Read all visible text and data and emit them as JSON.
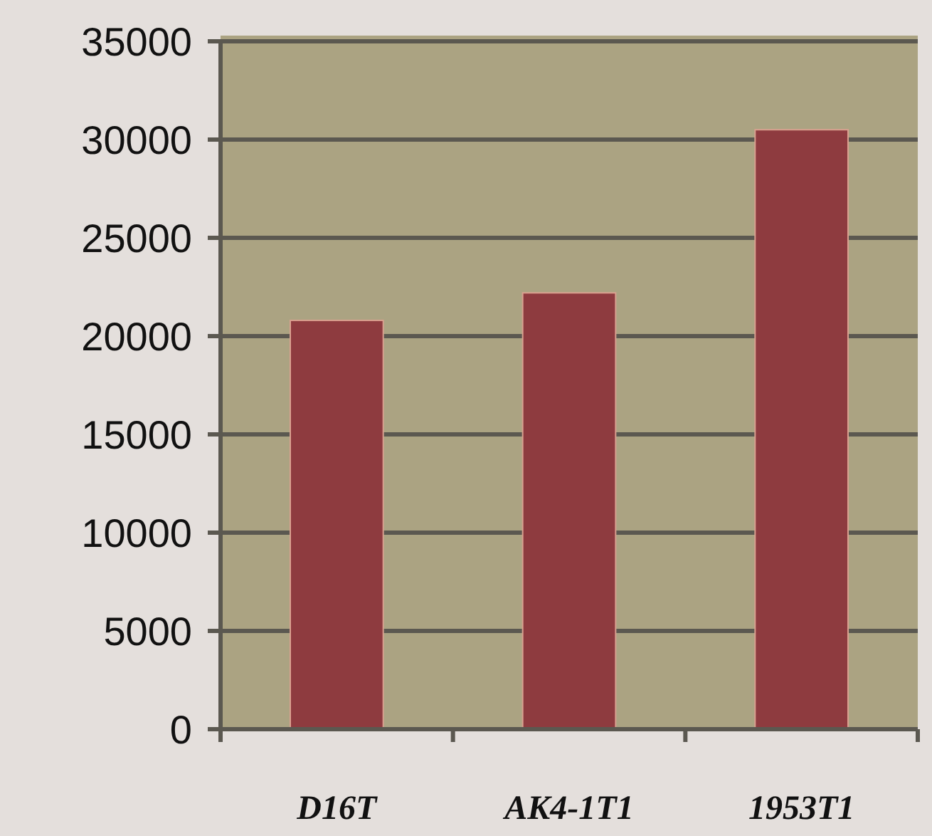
{
  "chart_data": {
    "type": "bar",
    "categories": [
      "D16T",
      "AK4-1T1",
      "1953T1"
    ],
    "values": [
      20800,
      22200,
      30500
    ],
    "color": "#8e3b3f",
    "ylim": [
      0,
      35000
    ],
    "yticks": [
      0,
      5000,
      10000,
      15000,
      20000,
      25000,
      30000,
      35000
    ],
    "grid": "y"
  }
}
